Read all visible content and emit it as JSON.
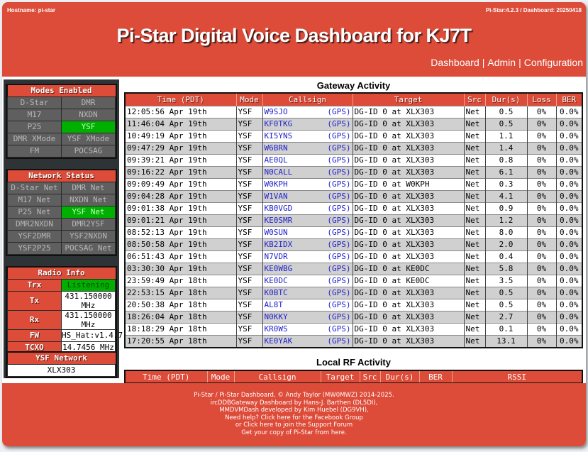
{
  "header": {
    "hostname": "Hostname: pi-star",
    "version": "Pi-Star:4.2.3 / Dashboard: 20250418",
    "title": "Pi-Star Digital Voice Dashboard for KJ7T",
    "nav": [
      {
        "label": "Dashboard"
      },
      {
        "label": "Admin"
      },
      {
        "label": "Configuration"
      }
    ],
    "nav_separator": "|"
  },
  "colors": {
    "brand_red": "#dd4b39",
    "active_green": "#00b000",
    "inactive_gray": "#5f5f5f",
    "sidebar_bg": "#2e3436",
    "link_blue": "#2222cc"
  },
  "sidebar": {
    "modes": {
      "title": "Modes Enabled",
      "rows": [
        [
          {
            "label": "D-Star",
            "active": false
          },
          {
            "label": "DMR",
            "active": false
          }
        ],
        [
          {
            "label": "M17",
            "active": false
          },
          {
            "label": "NXDN",
            "active": false
          }
        ],
        [
          {
            "label": "P25",
            "active": false
          },
          {
            "label": "YSF",
            "active": true
          }
        ],
        [
          {
            "label": "DMR XMode",
            "active": false
          },
          {
            "label": "YSF XMode",
            "active": false
          }
        ],
        [
          {
            "label": "FM",
            "active": false
          },
          {
            "label": "POCSAG",
            "active": false
          }
        ]
      ]
    },
    "network": {
      "title": "Network Status",
      "rows": [
        [
          {
            "label": "D-Star Net",
            "active": false
          },
          {
            "label": "DMR Net",
            "active": false
          }
        ],
        [
          {
            "label": "M17 Net",
            "active": false
          },
          {
            "label": "NXDN Net",
            "active": false
          }
        ],
        [
          {
            "label": "P25 Net",
            "active": false
          },
          {
            "label": "YSF Net",
            "active": true
          }
        ],
        [
          {
            "label": "DMR2NXDN",
            "active": false
          },
          {
            "label": "DMR2YSF",
            "active": false
          }
        ],
        [
          {
            "label": "YSF2DMR",
            "active": false
          },
          {
            "label": "YSF2NXDN",
            "active": false
          }
        ],
        [
          {
            "label": "YSF2P25",
            "active": false
          },
          {
            "label": "POCSAG Net",
            "active": false
          }
        ]
      ]
    },
    "radio": {
      "title": "Radio Info",
      "rows": [
        {
          "label": "Trx",
          "value": "Listening"
        },
        {
          "label": "Tx",
          "value": "431.150000 MHz"
        },
        {
          "label": "Rx",
          "value": "431.150000 MHz"
        },
        {
          "label": "FW",
          "value": "HS_Hat:v1.4.7"
        },
        {
          "label": "TCXO",
          "value": "14.7456 MHz"
        }
      ]
    },
    "ysf_network": {
      "title": "YSF Network",
      "value": "XLX303"
    }
  },
  "gateway": {
    "title": "Gateway Activity",
    "columns": [
      "Time (PDT)",
      "Mode",
      "Callsign",
      "Target",
      "Src",
      "Dur(s)",
      "Loss",
      "BER"
    ],
    "gps_label": "(GPS)",
    "rows": [
      {
        "time": "12:05:56 Apr 19th",
        "mode": "YSF",
        "callsign": "W9SJO",
        "target": "DG-ID 0 at XLX303",
        "src": "Net",
        "dur": "0.5",
        "loss": "0%",
        "ber": "0.0%"
      },
      {
        "time": "11:46:04 Apr 19th",
        "mode": "YSF",
        "callsign": "KF0TKG",
        "target": "DG-ID 0 at XLX303",
        "src": "Net",
        "dur": "0.5",
        "loss": "0%",
        "ber": "0.0%"
      },
      {
        "time": "10:49:19 Apr 19th",
        "mode": "YSF",
        "callsign": "KI5YNS",
        "target": "DG-ID 0 at XLX303",
        "src": "Net",
        "dur": "1.1",
        "loss": "0%",
        "ber": "0.0%"
      },
      {
        "time": "09:47:29 Apr 19th",
        "mode": "YSF",
        "callsign": "W6BRN",
        "target": "DG-ID 0 at XLX303",
        "src": "Net",
        "dur": "1.4",
        "loss": "0%",
        "ber": "0.0%"
      },
      {
        "time": "09:39:21 Apr 19th",
        "mode": "YSF",
        "callsign": "AE0QL",
        "target": "DG-ID 0 at XLX303",
        "src": "Net",
        "dur": "0.8",
        "loss": "0%",
        "ber": "0.0%"
      },
      {
        "time": "09:16:22 Apr 19th",
        "mode": "YSF",
        "callsign": "N0CALL",
        "target": "DG-ID 0 at XLX303",
        "src": "Net",
        "dur": "6.1",
        "loss": "0%",
        "ber": "0.0%"
      },
      {
        "time": "09:09:49 Apr 19th",
        "mode": "YSF",
        "callsign": "W0KPH",
        "target": "DG-ID 0 at W0KPH",
        "src": "Net",
        "dur": "0.3",
        "loss": "0%",
        "ber": "0.0%"
      },
      {
        "time": "09:04:28 Apr 19th",
        "mode": "YSF",
        "callsign": "W1VAN",
        "target": "DG-ID 0 at XLX303",
        "src": "Net",
        "dur": "4.1",
        "loss": "0%",
        "ber": "0.0%"
      },
      {
        "time": "09:01:38 Apr 19th",
        "mode": "YSF",
        "callsign": "KB0VGD",
        "target": "DG-ID 0 at XLX303",
        "src": "Net",
        "dur": "0.9",
        "loss": "0%",
        "ber": "0.0%"
      },
      {
        "time": "09:01:21 Apr 19th",
        "mode": "YSF",
        "callsign": "KE0SMR",
        "target": "DG-ID 0 at XLX303",
        "src": "Net",
        "dur": "1.2",
        "loss": "0%",
        "ber": "0.0%"
      },
      {
        "time": "08:52:13 Apr 19th",
        "mode": "YSF",
        "callsign": "W0SUN",
        "target": "DG-ID 0 at XLX303",
        "src": "Net",
        "dur": "8.0",
        "loss": "0%",
        "ber": "0.0%"
      },
      {
        "time": "08:50:58 Apr 19th",
        "mode": "YSF",
        "callsign": "KB2IDX",
        "target": "DG-ID 0 at XLX303",
        "src": "Net",
        "dur": "2.0",
        "loss": "0%",
        "ber": "0.0%"
      },
      {
        "time": "06:51:43 Apr 19th",
        "mode": "YSF",
        "callsign": "N7VDR",
        "target": "DG-ID 0 at XLX303",
        "src": "Net",
        "dur": "0.4",
        "loss": "0%",
        "ber": "0.0%"
      },
      {
        "time": "03:30:30 Apr 19th",
        "mode": "YSF",
        "callsign": "KE0WBG",
        "target": "DG-ID 0 at KE0DC",
        "src": "Net",
        "dur": "5.8",
        "loss": "0%",
        "ber": "0.0%"
      },
      {
        "time": "23:59:49 Apr 18th",
        "mode": "YSF",
        "callsign": "KE0DC",
        "target": "DG-ID 0 at KE0DC",
        "src": "Net",
        "dur": "3.5",
        "loss": "0%",
        "ber": "0.0%"
      },
      {
        "time": "22:53:15 Apr 18th",
        "mode": "YSF",
        "callsign": "K0BTC",
        "target": "DG-ID 0 at XLX303",
        "src": "Net",
        "dur": "0.5",
        "loss": "0%",
        "ber": "0.0%"
      },
      {
        "time": "20:50:38 Apr 18th",
        "mode": "YSF",
        "callsign": "AL8T",
        "target": "DG-ID 0 at XLX303",
        "src": "Net",
        "dur": "0.5",
        "loss": "0%",
        "ber": "0.0%"
      },
      {
        "time": "18:26:04 Apr 18th",
        "mode": "YSF",
        "callsign": "N0KKY",
        "target": "DG-ID 0 at XLX303",
        "src": "Net",
        "dur": "2.7",
        "loss": "0%",
        "ber": "0.0%"
      },
      {
        "time": "18:18:29 Apr 18th",
        "mode": "YSF",
        "callsign": "KR0WS",
        "target": "DG-ID 0 at XLX303",
        "src": "Net",
        "dur": "0.1",
        "loss": "0%",
        "ber": "0.0%"
      },
      {
        "time": "17:20:55 Apr 18th",
        "mode": "YSF",
        "callsign": "KE0YAK",
        "target": "DG-ID 0 at XLX303",
        "src": "Net",
        "dur": "13.1",
        "loss": "0%",
        "ber": "0.0%"
      }
    ]
  },
  "local_rf": {
    "title": "Local RF Activity",
    "columns": [
      "Time (PDT)",
      "Mode",
      "Callsign",
      "Target",
      "Src",
      "Dur(s)",
      "BER",
      "RSSI"
    ]
  },
  "footer": {
    "lines": [
      "Pi-Star / Pi-Star Dashboard, © Andy Taylor (MW0MWZ) 2014-2025.",
      "ircDDBGateway Dashboard by Hans-J. Barthen (DL5DI),",
      "MMDVMDash developed by Kim Huebel (DG9VH),",
      "Need help? Click here for the Facebook Group",
      "or Click here to join the Support Forum",
      "Get your copy of Pi-Star from here."
    ]
  }
}
